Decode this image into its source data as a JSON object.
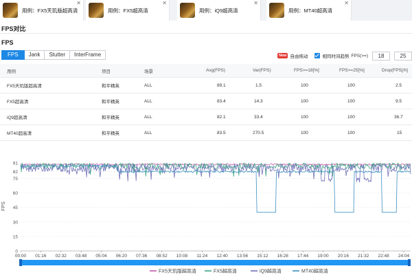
{
  "tabs": [
    {
      "label": "用例：FX5天玑版超高清"
    },
    {
      "label": "用例：FX5超高清"
    },
    {
      "label": "用例：iQ9超高清"
    },
    {
      "label": "用例：MT40超高清"
    }
  ],
  "section_title": "FPS对比",
  "sub_title": "FPS",
  "segments": [
    "FPS",
    "Jank",
    "Stutter",
    "InterFrame"
  ],
  "controls": {
    "new_badge": "New",
    "auto_align": "自由拖动",
    "same_time": "相同时间趋势",
    "fps_range_label": "FPS(>=)",
    "fps_min": "18",
    "fps_max": "25"
  },
  "table": {
    "headers": [
      "用例",
      "项目",
      "场景",
      "Avg(FPS)",
      "Var(FPS)",
      "FPS>=18[%]",
      "FPS>=25[%]",
      "Drop(FPS[/h]"
    ],
    "rows": [
      [
        "FX5天玑版超高清",
        "和平精英",
        "ALL",
        "89.1",
        "1.5",
        "100",
        "100",
        "2.5"
      ],
      [
        "FX5超高清",
        "和平精英",
        "ALL",
        "83.4",
        "14.3",
        "100",
        "100",
        "9.5"
      ],
      [
        "iQ9超高清",
        "和平精英",
        "ALL",
        "82.1",
        "33.4",
        "100",
        "100",
        "36.7"
      ],
      [
        "MT40超高清",
        "和平精英",
        "ALL",
        "83.5",
        "270.5",
        "100",
        "100",
        "15"
      ]
    ]
  },
  "chart_data": {
    "type": "line",
    "ylabel": "FPS",
    "yticks": [
      0,
      15,
      30,
      45,
      60,
      75,
      82,
      91
    ],
    "ylim": [
      0,
      96
    ],
    "xticks": [
      "00:00",
      "01:16",
      "02:32",
      "03:48",
      "05:04",
      "06:20",
      "07:36",
      "08:52",
      "10:08",
      "11:24",
      "12:40",
      "13:56",
      "15:12",
      "16:28",
      "17:44",
      "19:00",
      "20:16",
      "21:32",
      "22:48",
      "24:04"
    ],
    "grid": true,
    "legend_position": "bottom",
    "series": [
      {
        "name": "FX5天玑版超高清",
        "color": "#c05aa8",
        "base": 89.5,
        "noise": 1.5
      },
      {
        "name": "FX5超高清",
        "color": "#3aa683",
        "base": 88,
        "noise": 6
      },
      {
        "name": "iQ9超高清",
        "color": "#6f6fb8",
        "base": 86,
        "noise": 8
      },
      {
        "name": "MT40超高清",
        "color": "#3d8fbf",
        "base": 82,
        "noise": 2,
        "drops_to": 40
      }
    ]
  },
  "colors": {
    "accent": "#1e88e5",
    "scrollbar": "#2196f3"
  }
}
